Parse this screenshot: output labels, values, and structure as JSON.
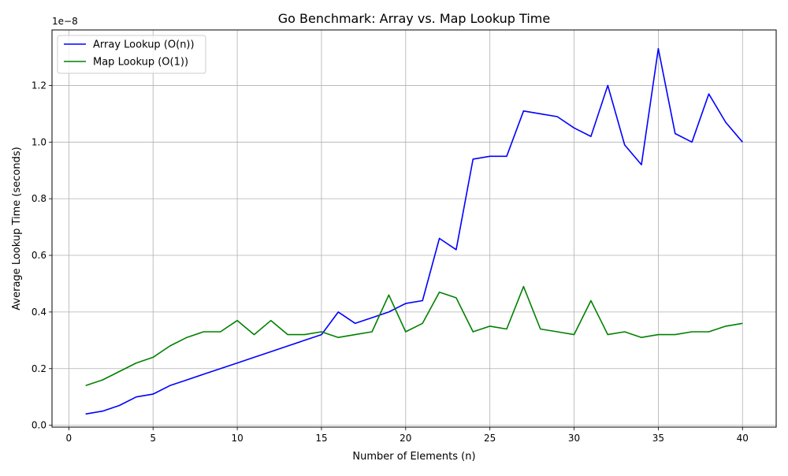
{
  "chart_data": {
    "type": "line",
    "title": "Go Benchmark: Array vs. Map Lookup Time",
    "xlabel": "Number of Elements (n)",
    "ylabel": "Average Lookup Time (seconds)",
    "y_offset_text": "1e−8",
    "y_scale_factor": 1e-08,
    "xlim": [
      -1,
      42
    ],
    "ylim": [
      -0.0066,
      1.396
    ],
    "x_ticks": [
      0,
      5,
      10,
      15,
      20,
      25,
      30,
      35,
      40
    ],
    "y_ticks": [
      0.0,
      0.2,
      0.4,
      0.6,
      0.8,
      1.0,
      1.2
    ],
    "x_tick_labels": [
      "0",
      "5",
      "10",
      "15",
      "20",
      "25",
      "30",
      "35",
      "40"
    ],
    "y_tick_labels": [
      "0.0",
      "0.2",
      "0.4",
      "0.6",
      "0.8",
      "1.0",
      "1.2"
    ],
    "grid": true,
    "legend_position": "top-left",
    "x": [
      1,
      2,
      3,
      4,
      5,
      6,
      7,
      8,
      9,
      10,
      11,
      12,
      13,
      14,
      15,
      16,
      17,
      18,
      19,
      20,
      21,
      22,
      23,
      24,
      25,
      26,
      27,
      28,
      29,
      30,
      31,
      32,
      33,
      34,
      35,
      36,
      37,
      38,
      39,
      40
    ],
    "series": [
      {
        "name": "Array Lookup (O(n))",
        "color": "#0000ff",
        "values": [
          0.04,
          0.05,
          0.07,
          0.1,
          0.11,
          0.14,
          0.16,
          0.18,
          0.2,
          0.22,
          0.24,
          0.26,
          0.28,
          0.3,
          0.32,
          0.4,
          0.36,
          0.38,
          0.4,
          0.43,
          0.44,
          0.66,
          0.62,
          0.94,
          0.95,
          0.95,
          1.11,
          1.1,
          1.09,
          1.05,
          1.02,
          1.2,
          0.99,
          0.92,
          1.33,
          1.03,
          1.0,
          1.17,
          1.07,
          1.0
        ]
      },
      {
        "name": "Map Lookup (O(1))",
        "color": "#008000",
        "values": [
          0.14,
          0.16,
          0.19,
          0.22,
          0.24,
          0.28,
          0.31,
          0.33,
          0.33,
          0.37,
          0.32,
          0.37,
          0.32,
          0.32,
          0.33,
          0.31,
          0.32,
          0.33,
          0.46,
          0.33,
          0.36,
          0.47,
          0.45,
          0.33,
          0.35,
          0.34,
          0.49,
          0.34,
          0.33,
          0.32,
          0.44,
          0.32,
          0.33,
          0.31,
          0.32,
          0.32,
          0.33,
          0.33,
          0.35,
          0.36
        ]
      }
    ]
  }
}
